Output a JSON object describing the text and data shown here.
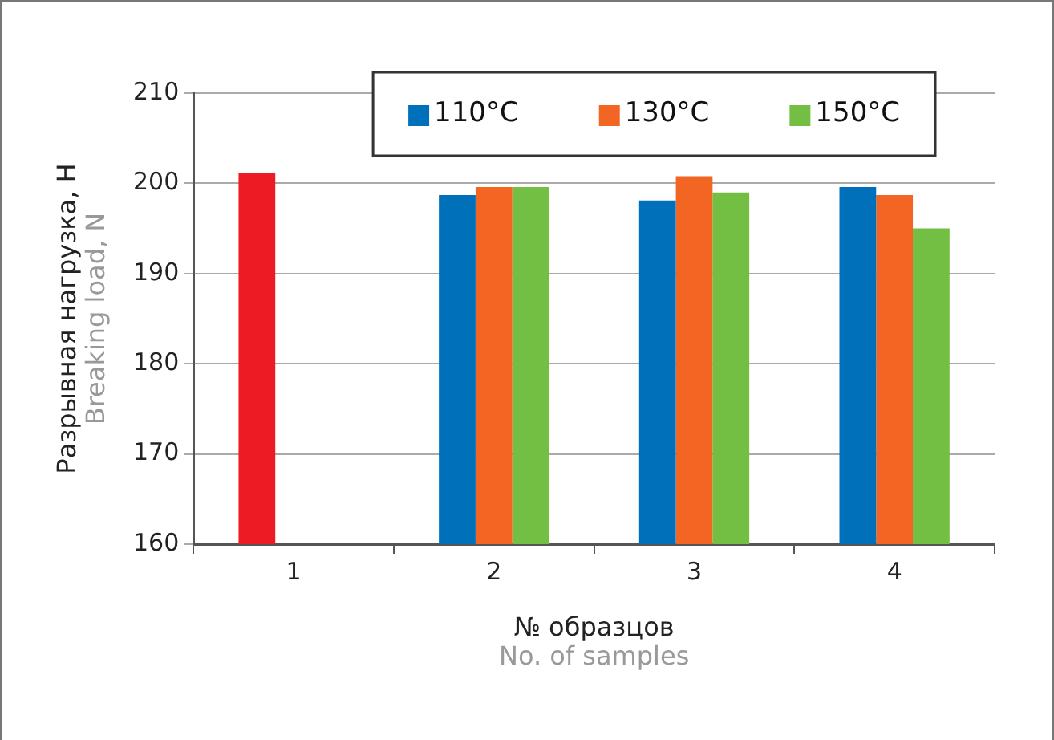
{
  "chart_data": {
    "type": "bar",
    "ylabel": "Разрывная нагрузка, Н\nBreaking load, N",
    "xlabel": "№ образцов\nNo. of samples",
    "categories": [
      "1",
      "2",
      "3",
      "4"
    ],
    "series": [
      {
        "name": "110°C",
        "color": "#0070bb",
        "colors": [
          "#ed1c24",
          "#0070bb",
          "#0070bb",
          "#0070bb"
        ],
        "values": [
          201.1,
          198.7,
          198.1,
          199.6
        ]
      },
      {
        "name": "130°C",
        "color": "#f26522",
        "values": [
          null,
          199.6,
          200.8,
          198.7
        ]
      },
      {
        "name": "150°C",
        "color": "#72bf44",
        "values": [
          null,
          199.6,
          199.0,
          195.0
        ]
      }
    ],
    "ylim": [
      160,
      210
    ],
    "yticks": [
      160,
      170,
      180,
      190,
      200,
      210
    ],
    "grid": "y",
    "legend": "top right"
  }
}
